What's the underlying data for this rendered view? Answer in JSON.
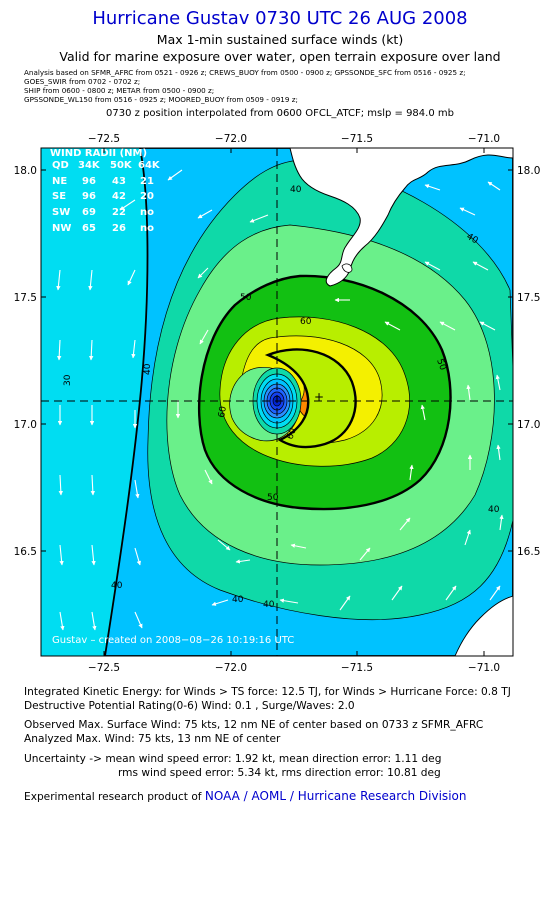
{
  "header": {
    "title": "Hurricane Gustav 0730 UTC 26 AUG 2008",
    "subtitle": "Max 1-min sustained surface winds (kt)",
    "subtitle2": "Valid for marine exposure over water, open terrain exposure over land",
    "sources": [
      "Analysis based on  SFMR_AFRC from 0521 - 0926 z;  CREWS_BUOY from 0500 - 0900 z;  GPSSONDE_SFC from 0516 - 0925 z;",
      "GOES_SWIR from 0702 - 0702 z;",
      "SHIP from 0600 - 0800 z;   METAR from 0500 - 0900 z;",
      "GPSSONDE_WL150 from 0516 - 0925 z;   MOORED_BUOY from 0509 - 0919 z;"
    ],
    "position_note": "0730 z position interpolated from 0600 OFCL_ATCF; mslp = 984.0 mb"
  },
  "map": {
    "lon_ticks": [
      "−72.5",
      "−72.0",
      "−71.5",
      "−71.0"
    ],
    "lat_ticks": [
      "18.0",
      "17.5",
      "17.0",
      "16.5"
    ],
    "lon_range": [
      -72.75,
      -70.85
    ],
    "lat_range": [
      16.1,
      18.1
    ],
    "center": {
      "lon": -71.78,
      "lat": 17.08
    },
    "max_wind_marker": {
      "lon": -71.59,
      "lat": 17.1
    },
    "contour_labels": [
      "30",
      "40",
      "40",
      "40",
      "40",
      "40",
      "40",
      "40",
      "50",
      "50",
      "50",
      "60",
      "60",
      "60"
    ],
    "credit": "Gustav – created on 2008−08−26 10:19:16 UTC",
    "colors": {
      "lt_cyan": "#00ddf2",
      "cyan": "#00c2ff",
      "green_teal": "#0fd9a8",
      "lt_green": "#6af08a",
      "green": "#12c012",
      "yellow_green": "#b8ee00",
      "yellow": "#f4f000",
      "orange": "#ff8800",
      "land": "#ffffff"
    }
  },
  "wind_radii": {
    "title": "WIND RADII (NM)",
    "header": [
      "QD",
      "34K",
      "50K",
      "64K"
    ],
    "rows": [
      [
        "NE",
        "96",
        "43",
        "21"
      ],
      [
        "SE",
        "96",
        "42",
        "20"
      ],
      [
        "SW",
        "69",
        "22",
        "no"
      ],
      [
        "NW",
        "65",
        "26",
        "no"
      ]
    ]
  },
  "footer": {
    "ike": "Integrated Kinetic Energy:  for Winds > TS force: 12.5 TJ,  for Winds > Hurricane Force: 0.8 TJ",
    "dpr": "Destructive Potential Rating(0-6)   Wind: 0.1 , Surge/Waves: 2.0",
    "observed": "Observed Max. Surface Wind: 75 kts, 12 nm NE of center based on 0733 z SFMR_AFRC",
    "analyzed": "Analyzed Max. Wind: 75 kts, 13 nm NE of center",
    "uncertainty1": "Uncertainty -> mean wind speed error: 1.92 kt,   mean direction error: 1.11 deg",
    "uncertainty2": "rms wind speed error: 5.34 kt,   rms direction error: 10.81 deg",
    "product_prefix": "Experimental research product of ",
    "product_org": "NOAA / AOML / Hurricane Research Division"
  }
}
